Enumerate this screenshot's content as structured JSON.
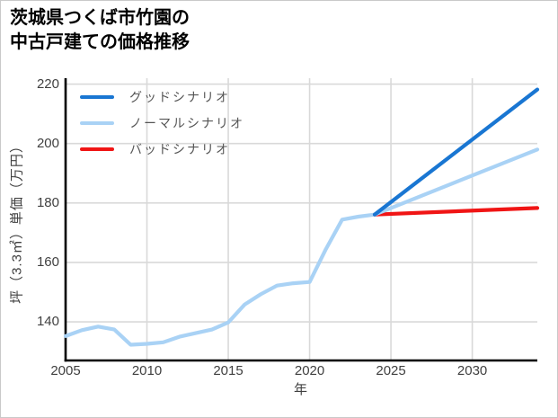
{
  "title": {
    "line1": "茨城県つくば市竹園の",
    "line2": "中古戸建ての価格推移"
  },
  "chart_data": {
    "type": "line",
    "title": "茨城県つくば市竹園の中古戸建ての価格推移",
    "xlabel": "年",
    "ylabel": "坪（3.3㎡）単価（万円）",
    "xlim": [
      2005,
      2034
    ],
    "ylim": [
      127,
      222
    ],
    "x_ticks": [
      2005,
      2010,
      2015,
      2020,
      2025,
      2030
    ],
    "y_ticks": [
      140,
      160,
      180,
      200,
      220
    ],
    "grid": true,
    "legend_position": "upper-left",
    "colors": {
      "good": "#1976d2",
      "normal": "#a9d2f5",
      "bad": "#f01515",
      "grid": "#d9d9d9",
      "axis": "#000000",
      "tick_label": "#404040",
      "legend_text": "#555555",
      "title_text": "#000000"
    },
    "legend": [
      {
        "label": "グッドシナリオ",
        "color": "#1976d2"
      },
      {
        "label": "ノーマルシナリオ",
        "color": "#a9d2f5"
      },
      {
        "label": "バッドシナリオ",
        "color": "#f01515"
      }
    ],
    "series": [
      {
        "id": "historical",
        "color": "#a9d2f5",
        "x": [
          2005,
          2006,
          2007,
          2008,
          2009,
          2010,
          2011,
          2012,
          2013,
          2014,
          2015,
          2016,
          2017,
          2018,
          2019,
          2020,
          2021,
          2022,
          2023,
          2024
        ],
        "y": [
          135.2,
          137.2,
          138.4,
          137.4,
          132.3,
          132.6,
          133.1,
          135.0,
          136.2,
          137.4,
          139.8,
          145.8,
          149.3,
          152.2,
          153.0,
          153.4,
          164.5,
          174.4,
          175.4,
          176.1
        ]
      },
      {
        "id": "bad-scenario",
        "color": "#f01515",
        "x": [
          2024,
          2034
        ],
        "y": [
          176.1,
          178.3
        ]
      },
      {
        "id": "normal-scenario",
        "color": "#a9d2f5",
        "x": [
          2024,
          2034
        ],
        "y": [
          176.1,
          198.0
        ]
      },
      {
        "id": "good-scenario",
        "color": "#1976d2",
        "x": [
          2024,
          2034
        ],
        "y": [
          176.1,
          218.2
        ]
      }
    ]
  }
}
